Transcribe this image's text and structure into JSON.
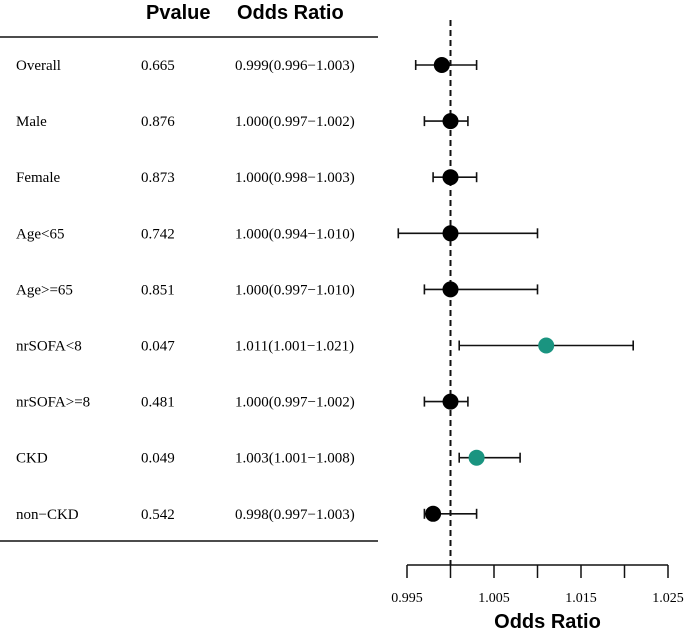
{
  "chart_data": {
    "type": "forest",
    "columns": {
      "pvalue": "Pvalue",
      "odds_ratio": "Odds Ratio"
    },
    "rows": [
      {
        "label": "Overall",
        "pvalue": "0.665",
        "or_text": "0.999(0.996−1.003)",
        "or": 0.999,
        "lo": 0.996,
        "hi": 1.003,
        "significant": false
      },
      {
        "label": "Male",
        "pvalue": "0.876",
        "or_text": "1.000(0.997−1.002)",
        "or": 1.0,
        "lo": 0.997,
        "hi": 1.002,
        "significant": false
      },
      {
        "label": "Female",
        "pvalue": "0.873",
        "or_text": "1.000(0.998−1.003)",
        "or": 1.0,
        "lo": 0.998,
        "hi": 1.003,
        "significant": false
      },
      {
        "label": "Age<65",
        "pvalue": "0.742",
        "or_text": "1.000(0.994−1.010)",
        "or": 1.0,
        "lo": 0.994,
        "hi": 1.01,
        "significant": false
      },
      {
        "label": "Age>=65",
        "pvalue": "0.851",
        "or_text": "1.000(0.997−1.010)",
        "or": 1.0,
        "lo": 0.997,
        "hi": 1.01,
        "significant": false
      },
      {
        "label": "nrSOFA<8",
        "pvalue": "0.047",
        "or_text": "1.011(1.001−1.021)",
        "or": 1.011,
        "lo": 1.001,
        "hi": 1.021,
        "significant": true
      },
      {
        "label": "nrSOFA>=8",
        "pvalue": "0.481",
        "or_text": "1.000(0.997−1.002)",
        "or": 1.0,
        "lo": 0.997,
        "hi": 1.002,
        "significant": false
      },
      {
        "label": "CKD",
        "pvalue": "0.049",
        "or_text": "1.003(1.001−1.008)",
        "or": 1.003,
        "lo": 1.001,
        "hi": 1.008,
        "significant": true
      },
      {
        "label": "non−CKD",
        "pvalue": "0.542",
        "or_text": "0.998(0.997−1.003)",
        "or": 0.998,
        "lo": 0.997,
        "hi": 1.003,
        "significant": false
      }
    ],
    "xlabel": "Odds Ratio",
    "xlim": [
      0.995,
      1.025
    ],
    "major_ticks": [
      0.995,
      1.005,
      1.015,
      1.025
    ],
    "major_tick_labels": [
      "0.995",
      "1.005",
      "1.015",
      "1.025"
    ],
    "minor_ticks": [
      1.0,
      1.01,
      1.02
    ],
    "reference_line": 1.0,
    "colors": {
      "default": "#000000",
      "significant": "#1a9480"
    }
  }
}
